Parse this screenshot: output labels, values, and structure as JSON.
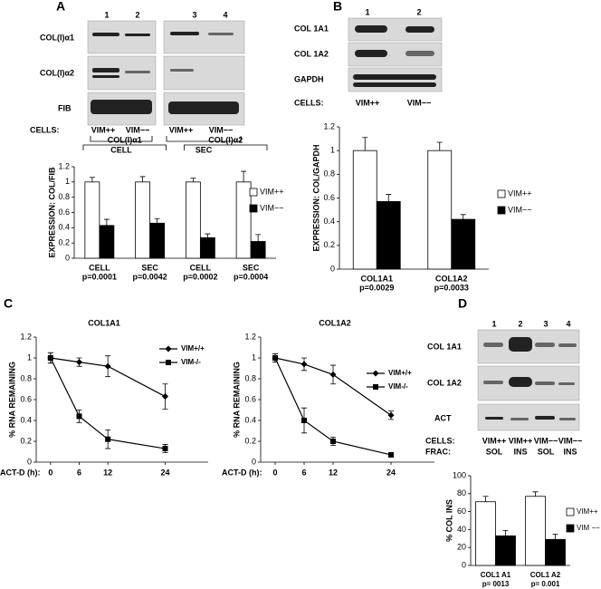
{
  "panel_labels": [
    "A",
    "B",
    "C",
    "D"
  ],
  "blots": [
    {
      "lanes": [
        "1",
        "2",
        "3",
        "4"
      ],
      "rows": [
        "COL(I)α1",
        "COL(I)α2",
        "FIB"
      ],
      "cells_label": "CELLS:",
      "cells": [
        "VIM++",
        "VIM−−",
        "VIM++",
        "VIM−−"
      ],
      "fractions": [
        "CELL",
        "SEC"
      ]
    },
    {
      "lanes": [
        "1",
        "2"
      ],
      "rows": [
        "COL 1A1",
        "COL 1A2",
        "GAPDH"
      ],
      "cells_label": "CELLS:",
      "cells": [
        "VIM++",
        "VIM−−"
      ]
    },
    {
      "lanes": [
        "1",
        "2",
        "3",
        "4"
      ],
      "rows": [
        "COL 1A1",
        "COL 1A2",
        "ACT"
      ],
      "cells_label": "CELLS:",
      "cells": [
        "VIM++",
        "VIM++",
        "VIM−−",
        "VIM−−"
      ],
      "frac_label": "FRAC:",
      "fractions": [
        "SOL",
        "INS",
        "SOL",
        "INS"
      ]
    }
  ],
  "chart_data": [
    {
      "type": "bar",
      "ylabel": "EXPRESSION:  COL/FIB",
      "groups": [
        "COL(I)α1",
        "COL(I)α2"
      ],
      "categories": [
        "CELL",
        "SEC",
        "CELL",
        "SEC"
      ],
      "category_notes": [
        "p=0.0001",
        "p=0.0042",
        "p=0.0002",
        "p=0.0004"
      ],
      "series": [
        {
          "name": "VIM++",
          "color": "#ffffff",
          "values": [
            1,
            1,
            1,
            1
          ],
          "errors": [
            0.06,
            0.07,
            0.05,
            0.14
          ]
        },
        {
          "name": "VIM−−",
          "color": "#000000",
          "values": [
            0.43,
            0.46,
            0.27,
            0.22
          ],
          "errors": [
            0.08,
            0.06,
            0.05,
            0.09
          ]
        }
      ],
      "ylim": [
        0,
        1.2
      ],
      "yticks": [
        0,
        0.2,
        0.4,
        0.6,
        0.8,
        1,
        1.2
      ]
    },
    {
      "type": "bar",
      "ylabel": "EXPRESSION:  COL/GAPDH",
      "categories": [
        "COL1A1",
        "COL1A2"
      ],
      "category_notes": [
        "p=0.0029",
        "p=0.0033"
      ],
      "series": [
        {
          "name": "VIM++",
          "color": "#ffffff",
          "values": [
            1,
            1
          ],
          "errors": [
            0.11,
            0.07
          ]
        },
        {
          "name": "VIM−−",
          "color": "#000000",
          "values": [
            0.57,
            0.42
          ],
          "errors": [
            0.06,
            0.04
          ]
        }
      ],
      "ylim": [
        0,
        1.2
      ],
      "yticks": [
        0,
        0.2,
        0.4,
        0.6,
        0.8,
        1,
        1.2
      ]
    },
    {
      "type": "line",
      "title": "COL1A1",
      "ylabel": "% RNA REMAINING",
      "xlabel": "ACT-D (h):",
      "x": [
        0,
        6,
        12,
        24
      ],
      "series": [
        {
          "name": "VIM+/+",
          "color": "#000000",
          "marker": "diamond",
          "values": [
            1,
            0.96,
            0.92,
            0.63
          ],
          "errors": [
            0.05,
            0.04,
            0.1,
            0.12
          ]
        },
        {
          "name": "VIM-/-",
          "color": "#000000",
          "marker": "square",
          "values": [
            1,
            0.44,
            0.22,
            0.13
          ],
          "errors": [
            0.05,
            0.06,
            0.09,
            0.04
          ]
        }
      ],
      "xlim": [
        -3,
        33
      ],
      "xticks": [
        0,
        6,
        12,
        24
      ],
      "ylim": [
        0,
        1.2
      ],
      "yticks": [
        0,
        0.2,
        0.4,
        0.6,
        0.8,
        1,
        1.2
      ]
    },
    {
      "type": "line",
      "title": "COL1A2",
      "ylabel": "% RNA REMAINING",
      "xlabel": "ACT-D (h):",
      "x": [
        0,
        6,
        12,
        24
      ],
      "series": [
        {
          "name": "VIM+/+",
          "color": "#000000",
          "marker": "diamond",
          "values": [
            1,
            0.94,
            0.84,
            0.45
          ],
          "errors": [
            0.04,
            0.06,
            0.09,
            0.04
          ]
        },
        {
          "name": "VIM-/-",
          "color": "#000000",
          "marker": "square",
          "values": [
            1,
            0.4,
            0.2,
            0.07
          ],
          "errors": [
            0.04,
            0.12,
            0.04,
            0.02
          ]
        }
      ],
      "xlim": [
        -3,
        33
      ],
      "xticks": [
        0,
        6,
        12,
        24
      ],
      "ylim": [
        0,
        1.2
      ],
      "yticks": [
        0,
        0.2,
        0.4,
        0.6,
        0.8,
        1,
        1.2
      ]
    },
    {
      "type": "bar",
      "ylabel": "% COL INS",
      "categories": [
        "COL1 A1",
        "COL1 A2"
      ],
      "category_notes": [
        "p= 0013",
        "p= 0.001"
      ],
      "series": [
        {
          "name": "VIM++",
          "color": "#ffffff",
          "values": [
            71,
            77
          ],
          "errors": [
            6,
            5
          ]
        },
        {
          "name": "VIM −−",
          "color": "#000000",
          "values": [
            33,
            29
          ],
          "errors": [
            6,
            6
          ]
        }
      ],
      "ylim": [
        0,
        100
      ],
      "yticks": [
        0,
        20,
        40,
        60,
        80,
        100
      ]
    }
  ]
}
